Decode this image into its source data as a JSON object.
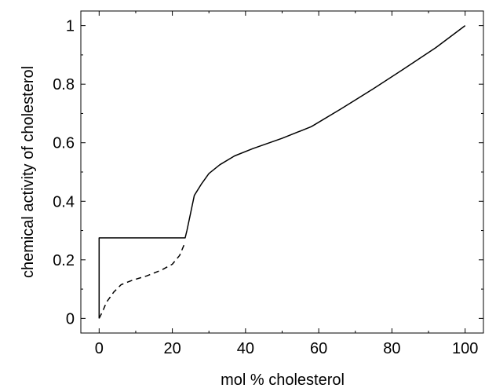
{
  "chart_data": {
    "type": "line",
    "title": "",
    "xlabel": "mol % cholesterol",
    "ylabel": "chemical activity of cholesterol",
    "xlim": [
      -5,
      105
    ],
    "ylim": [
      -0.05,
      1.05
    ],
    "grid": false,
    "x_ticks": [
      0,
      20,
      40,
      60,
      80,
      100
    ],
    "y_ticks": [
      0,
      0.2,
      0.4,
      0.6,
      0.8,
      1
    ],
    "x_tick_labels": [
      "0",
      "20",
      "40",
      "60",
      "80",
      "100"
    ],
    "y_tick_labels": [
      "0",
      "0.2",
      "0.4",
      "0.6",
      "0.8",
      "1"
    ],
    "series": [
      {
        "style": "solid",
        "x": [
          0,
          0,
          23.5,
          24,
          25,
          26,
          28,
          30,
          33,
          37,
          42,
          50,
          58,
          66,
          75,
          83,
          92,
          100
        ],
        "y": [
          0,
          0.275,
          0.275,
          0.3,
          0.36,
          0.42,
          0.46,
          0.495,
          0.525,
          0.555,
          0.58,
          0.615,
          0.655,
          0.715,
          0.785,
          0.85,
          0.925,
          1.0
        ]
      },
      {
        "style": "dashed",
        "x": [
          0,
          1,
          2,
          4,
          6,
          9,
          13,
          17,
          20,
          22,
          23.5
        ],
        "y": [
          0,
          0.025,
          0.055,
          0.09,
          0.115,
          0.13,
          0.145,
          0.165,
          0.185,
          0.215,
          0.26
        ]
      }
    ]
  }
}
